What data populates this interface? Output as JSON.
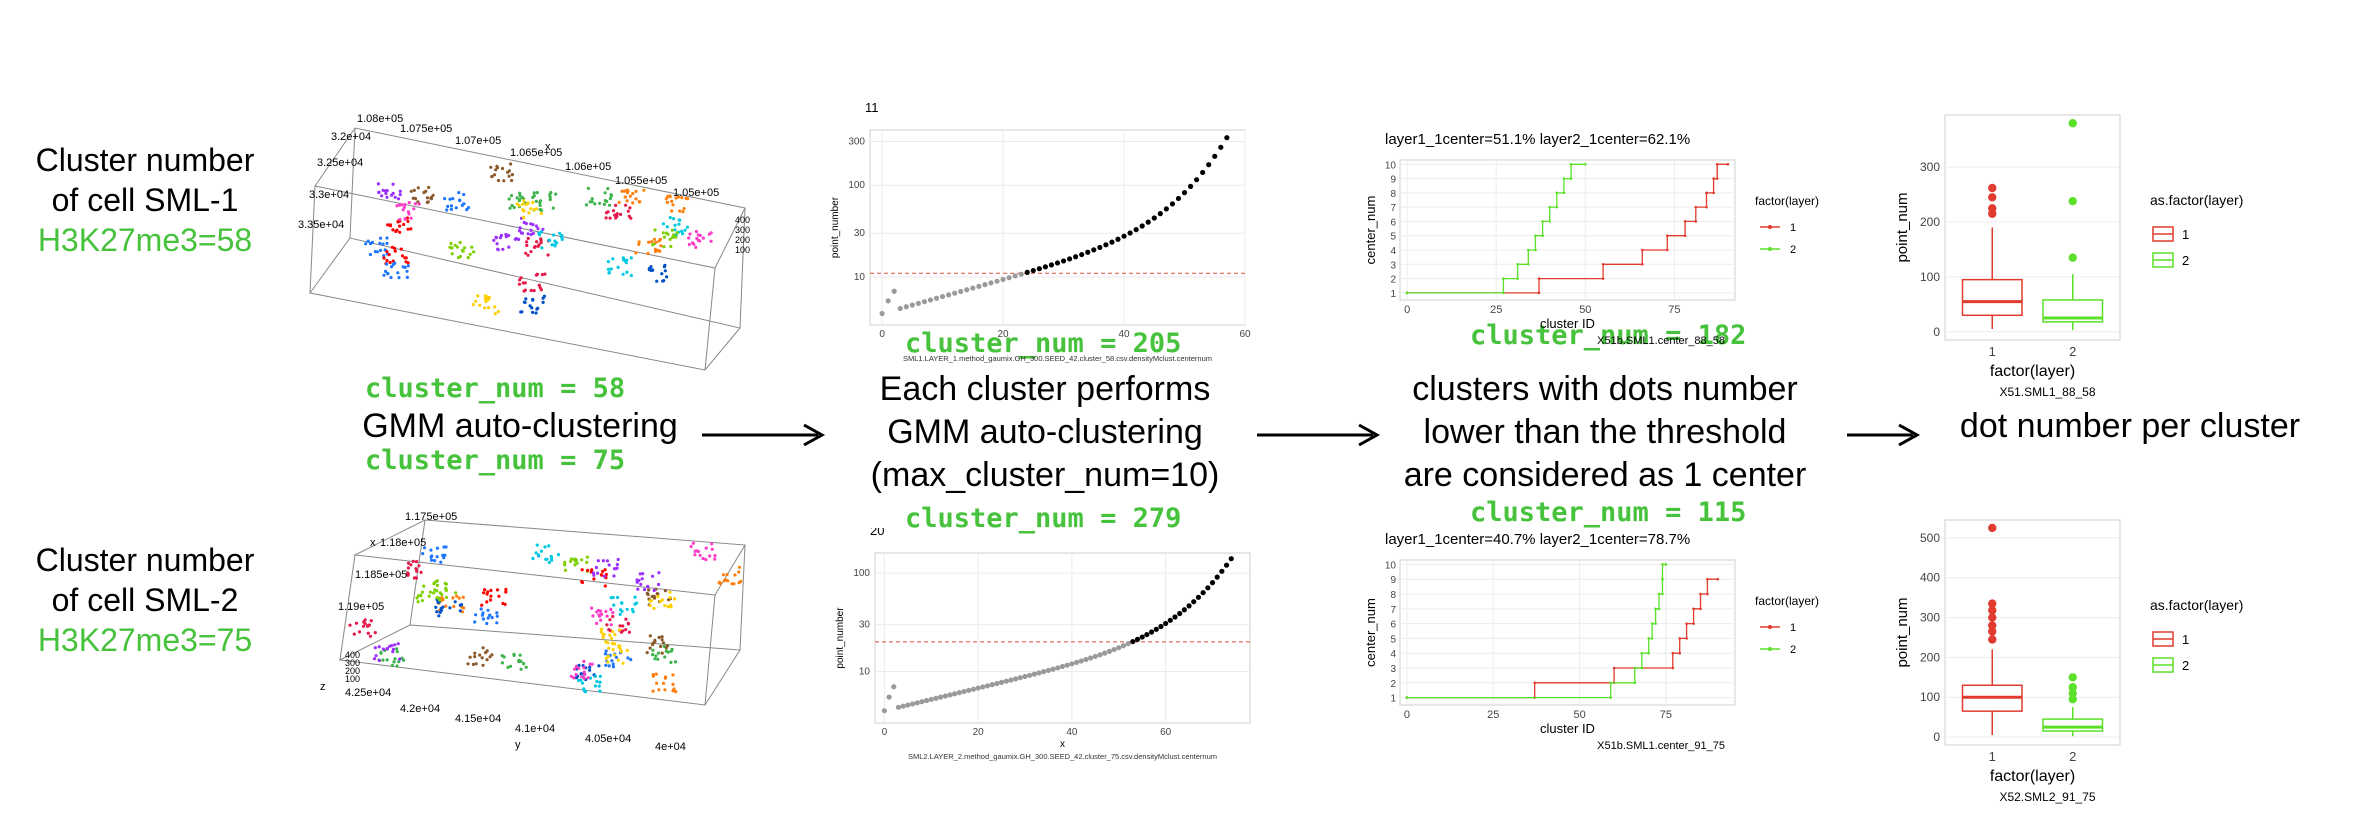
{
  "colors": {
    "green": "#47c23c",
    "red": "#e03b2e",
    "lime": "#5be02a",
    "gray": "#9a9a9a",
    "black": "#000000"
  },
  "row_labels": [
    {
      "line1": "Cluster number",
      "line2": "of cell SML-1",
      "line3": "H3K27me3=58"
    },
    {
      "line1": "Cluster number",
      "line2": "of cell SML-2",
      "line3": "H3K27me3=75"
    }
  ],
  "steps": {
    "gmm1": "GMM auto-clustering",
    "gmm2": [
      "Each cluster performs",
      "GMM auto-clustering",
      "(max_cluster_num=10)"
    ],
    "threshold": [
      "clusters with dots number",
      "lower than the threshold",
      "are considered as 1 center"
    ],
    "dotnum": "dot number per cluster"
  },
  "cluster_nums": {
    "c58": "cluster_num = 58",
    "c75": "cluster_num = 75",
    "c205": "cluster_num = 205",
    "c279": "cluster_num = 279",
    "c182": "cluster_num = 182",
    "c115": "cluster_num = 115"
  },
  "scatter3d": [
    {
      "ticks_top": [
        "1.08e+05",
        "1.075e+05",
        "1.07e+05",
        "1.065e+05",
        "1.06e+05",
        "1.055e+05",
        "1.05e+05"
      ],
      "ticks_left": [
        "3.2e+04",
        "3.25e+04",
        "3.3e+04",
        "3.35e+04"
      ],
      "axis_x": "x",
      "axis_y": "y",
      "ticks_z": [
        "400",
        "300",
        "200",
        "100"
      ]
    },
    {
      "ticks_left": [
        "1.175e+05",
        "1.18e+05",
        "1.185e+05",
        "1.19e+05"
      ],
      "ticks_bottom": [
        "4.25e+04",
        "4.2e+04",
        "4.15e+04",
        "4.1e+04",
        "4.05e+04",
        "4e+04"
      ],
      "axis_x": "x",
      "axis_y": "y",
      "axis_z": "z",
      "ticks_z": [
        "400",
        "300",
        "200",
        "100"
      ]
    }
  ],
  "chart_data": [
    {
      "type": "scatter",
      "title": "11",
      "ylabel": "point_number",
      "xlabel": "",
      "caption": "SML1.LAYER_1.method_gaumix.GH_300.SEED_42.cluster_58.csv.densityMclust.centernum",
      "log_y": true,
      "x_ticks": [
        0,
        20,
        40,
        60
      ],
      "y_ticks": [
        10,
        30,
        100,
        300
      ],
      "threshold": 11,
      "xlim": [
        -2,
        60
      ],
      "ylim": [
        3,
        400
      ],
      "n_points": 58,
      "y_start": 4,
      "y_end": 330
    },
    {
      "type": "scatter",
      "title": "20",
      "ylabel": "point_number",
      "xlabel": "x",
      "caption": "SML2.LAYER_2.method_gaumix.GH_300.SEED_42.cluster_75.csv.densityMclust.centernum",
      "log_y": true,
      "x_ticks": [
        0,
        20,
        40,
        60
      ],
      "y_ticks": [
        10,
        30,
        100
      ],
      "threshold": 20,
      "xlim": [
        -2,
        78
      ],
      "ylim": [
        3,
        160
      ],
      "n_points": 75,
      "y_start": 4,
      "y_end": 140
    },
    {
      "type": "line",
      "title": "layer1_1center=51.1% layer2_1center=62.1%",
      "xlabel": "cluster ID",
      "ylabel": "center_num",
      "caption": "X51b.SML1.center_88_58",
      "legend_title": "factor(layer)",
      "legend": [
        "1",
        "2"
      ],
      "x_ticks": [
        0,
        25,
        50,
        75
      ],
      "y_ticks": [
        1,
        2,
        3,
        4,
        5,
        6,
        7,
        8,
        9,
        10
      ],
      "xlim": [
        -2,
        92
      ],
      "ylim": [
        0.5,
        10.3
      ],
      "series": [
        {
          "name": "1",
          "steps": [
            [
              0,
              1
            ],
            [
              37,
              1
            ],
            [
              37,
              2
            ],
            [
              55,
              2
            ],
            [
              55,
              3
            ],
            [
              66,
              3
            ],
            [
              66,
              4
            ],
            [
              73,
              4
            ],
            [
              73,
              5
            ],
            [
              78,
              5
            ],
            [
              78,
              6
            ],
            [
              81,
              6
            ],
            [
              81,
              7
            ],
            [
              84,
              7
            ],
            [
              84,
              8
            ],
            [
              86,
              8
            ],
            [
              86,
              9
            ],
            [
              87,
              9
            ],
            [
              87,
              10
            ],
            [
              90,
              10
            ]
          ]
        },
        {
          "name": "2",
          "steps": [
            [
              0,
              1
            ],
            [
              27,
              1
            ],
            [
              27,
              2
            ],
            [
              31,
              2
            ],
            [
              31,
              3
            ],
            [
              34,
              3
            ],
            [
              34,
              4
            ],
            [
              36,
              4
            ],
            [
              36,
              5
            ],
            [
              38,
              5
            ],
            [
              38,
              6
            ],
            [
              40,
              6
            ],
            [
              40,
              7
            ],
            [
              42,
              7
            ],
            [
              42,
              8
            ],
            [
              44,
              8
            ],
            [
              44,
              9
            ],
            [
              46,
              9
            ],
            [
              46,
              10
            ],
            [
              50,
              10
            ]
          ]
        }
      ]
    },
    {
      "type": "line",
      "title": "layer1_1center=40.7% layer2_1center=78.7%",
      "xlabel": "cluster ID",
      "ylabel": "center_num",
      "caption": "X51b.SML1.center_91_75",
      "legend_title": "factor(layer)",
      "legend": [
        "1",
        "2"
      ],
      "x_ticks": [
        0,
        25,
        50,
        75
      ],
      "y_ticks": [
        1,
        2,
        3,
        4,
        5,
        6,
        7,
        8,
        9,
        10
      ],
      "xlim": [
        -2,
        95
      ],
      "ylim": [
        0.5,
        10.3
      ],
      "series": [
        {
          "name": "1",
          "steps": [
            [
              0,
              1
            ],
            [
              37,
              1
            ],
            [
              37,
              2
            ],
            [
              60,
              2
            ],
            [
              60,
              3
            ],
            [
              77,
              3
            ],
            [
              77,
              4
            ],
            [
              79,
              4
            ],
            [
              79,
              5
            ],
            [
              81,
              5
            ],
            [
              81,
              6
            ],
            [
              83,
              6
            ],
            [
              83,
              7
            ],
            [
              85,
              7
            ],
            [
              85,
              8
            ],
            [
              87,
              8
            ],
            [
              87,
              9
            ],
            [
              90,
              9
            ]
          ]
        },
        {
          "name": "2",
          "steps": [
            [
              0,
              1
            ],
            [
              59,
              1
            ],
            [
              59,
              2
            ],
            [
              66,
              2
            ],
            [
              66,
              3
            ],
            [
              68,
              3
            ],
            [
              68,
              4
            ],
            [
              70,
              4
            ],
            [
              70,
              5
            ],
            [
              71,
              5
            ],
            [
              71,
              6
            ],
            [
              72,
              6
            ],
            [
              72,
              7
            ],
            [
              73,
              7
            ],
            [
              73,
              8
            ],
            [
              74,
              8
            ],
            [
              74,
              9
            ],
            [
              74,
              9
            ],
            [
              74,
              10
            ],
            [
              75,
              10
            ]
          ]
        }
      ]
    },
    {
      "type": "boxplot",
      "xlabel": "factor(layer)",
      "ylabel": "point_num",
      "caption": "X51.SML1_88_58",
      "legend_title": "as.factor(layer)",
      "legend": [
        "1",
        "2"
      ],
      "categories": [
        "1",
        "2"
      ],
      "y_ticks": [
        0,
        100,
        200,
        300
      ],
      "ylim": [
        -15,
        395
      ],
      "boxes": [
        {
          "q1": 30,
          "median": 55,
          "q3": 95,
          "lo": 5,
          "hi": 190,
          "outliers": [
            215,
            225,
            245,
            262
          ]
        },
        {
          "q1": 18,
          "median": 25,
          "q3": 58,
          "lo": 3,
          "hi": 105,
          "outliers": [
            135,
            238,
            380
          ]
        }
      ]
    },
    {
      "type": "boxplot",
      "xlabel": "factor(layer)",
      "ylabel": "point_num",
      "caption": "X52.SML2_91_75",
      "legend_title": "as.factor(layer)",
      "legend": [
        "1",
        "2"
      ],
      "categories": [
        "1",
        "2"
      ],
      "y_ticks": [
        0,
        100,
        200,
        300,
        400,
        500
      ],
      "ylim": [
        -20,
        545
      ],
      "boxes": [
        {
          "q1": 65,
          "median": 100,
          "q3": 130,
          "lo": 5,
          "hi": 220,
          "outliers": [
            245,
            265,
            280,
            300,
            318,
            335,
            525
          ]
        },
        {
          "q1": 15,
          "median": 25,
          "q3": 45,
          "lo": 2,
          "hi": 75,
          "outliers": [
            95,
            110,
            125,
            150
          ]
        }
      ]
    }
  ]
}
